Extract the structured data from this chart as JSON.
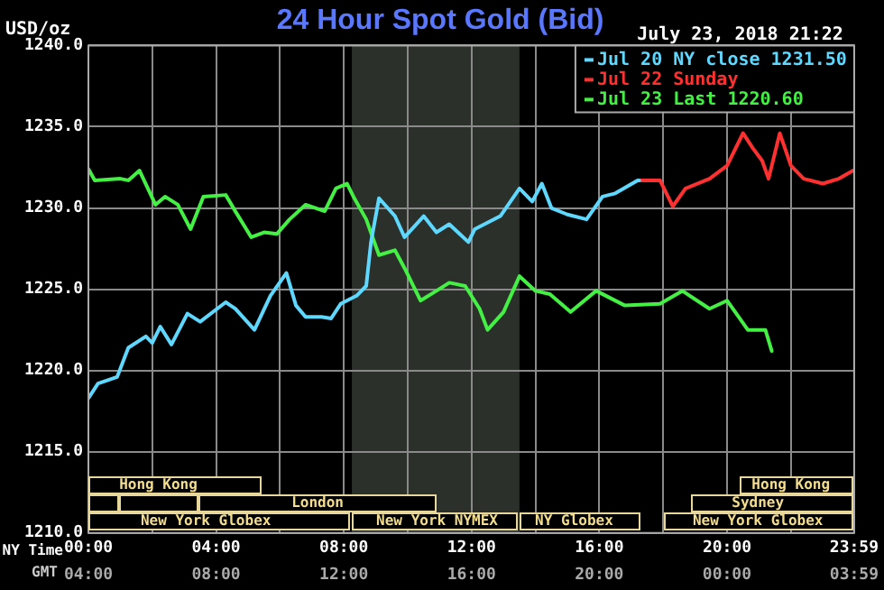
{
  "chart_data": {
    "type": "line",
    "title": "24 Hour Spot Gold (Bid)",
    "subtitle": "July 23, 2018 21:22",
    "ylabel": "USD/oz",
    "xlim": [
      0,
      23.98
    ],
    "xticks": [
      {
        "value": 0,
        "label": "00:00"
      },
      {
        "value": 2,
        "label": null
      },
      {
        "value": 4,
        "label": "04:00"
      },
      {
        "value": 6,
        "label": null
      },
      {
        "value": 8,
        "label": "08:00"
      },
      {
        "value": 10,
        "label": null
      },
      {
        "value": 12,
        "label": "12:00"
      },
      {
        "value": 14,
        "label": null
      },
      {
        "value": 16,
        "label": "16:00"
      },
      {
        "value": 18,
        "label": null
      },
      {
        "value": 20,
        "label": "20:00"
      },
      {
        "value": 22,
        "label": null
      },
      {
        "value": 23.98,
        "label": "23:59"
      }
    ],
    "x2lim": [
      "2018-07-23T04:00",
      "2018-07-24T03:59"
    ],
    "x2ticks": [
      {
        "value": "2018-07-23T04:00",
        "label": "04:00"
      },
      {
        "value": "2018-07-23T08:00",
        "label": "08:00"
      },
      {
        "value": "2018-07-23T12:00",
        "label": "12:00"
      },
      {
        "value": "2018-07-23T16:00",
        "label": "16:00"
      },
      {
        "value": "2018-07-23T20:00",
        "label": "20:00"
      },
      {
        "value": "2018-07-24T00:00",
        "label": "00:00"
      },
      {
        "value": "2018-07-24T03:59",
        "label": "03:59"
      }
    ],
    "ylim": [
      1210,
      1240
    ],
    "yticks": [
      {
        "value": 1210,
        "label": "1210.0"
      },
      {
        "value": 1215,
        "label": "1215.0"
      },
      {
        "value": 1220,
        "label": "1220.0"
      },
      {
        "value": 1225,
        "label": "1225.0"
      },
      {
        "value": 1230,
        "label": "1230.0"
      },
      {
        "value": 1235,
        "label": "1235.0"
      },
      {
        "value": 1240,
        "label": "1240.0"
      }
    ],
    "grid": true,
    "legend": "top right",
    "marker": "none",
    "line_style": "solid",
    "bands": [
      {
        "axis": "x",
        "from": 8.25,
        "to": 13.5,
        "color": "#2b302a"
      }
    ],
    "annotations": [
      "NY Time",
      "GMT",
      "Hong Kong",
      "London",
      "New York Globex",
      "New York NYMEX",
      "NY Globex",
      "Hong Kong",
      "Sydney",
      "New York Globex"
    ],
    "series": [
      {
        "name": "Jul 20 NY close 1231.50",
        "color": "#5fd8ff",
        "x": [
          0,
          0.3,
          0.9,
          1.25,
          1.8,
          2.0,
          2.25,
          2.6,
          3.1,
          3.5,
          4.3,
          4.6,
          5.2,
          5.7,
          6.2,
          6.5,
          6.8,
          7.3,
          7.6,
          7.9,
          8.4,
          8.7,
          8.85,
          9.1,
          9.6,
          9.9,
          10.5,
          10.9,
          11.3,
          11.9,
          12.1,
          12.9,
          13.5,
          13.9,
          14.2,
          14.5,
          15.0,
          15.6,
          16.1,
          16.5,
          17.2,
          17.25
        ],
        "values": [
          1218.3,
          1219.2,
          1219.6,
          1221.4,
          1222.1,
          1221.7,
          1222.7,
          1221.6,
          1223.5,
          1223.0,
          1224.2,
          1223.8,
          1222.5,
          1224.6,
          1226.0,
          1224.0,
          1223.3,
          1223.3,
          1223.2,
          1224.1,
          1224.6,
          1225.2,
          1227.9,
          1230.6,
          1229.5,
          1228.2,
          1229.5,
          1228.5,
          1229.0,
          1227.9,
          1228.7,
          1229.5,
          1231.2,
          1230.4,
          1231.5,
          1230.0,
          1229.6,
          1229.3,
          1230.7,
          1230.9,
          1231.7,
          1231.7
        ]
      },
      {
        "name": "Jul 22 Sunday",
        "color": "#ff3030",
        "x": [
          17.25,
          17.9,
          18.3,
          18.7,
          19.45,
          20.0,
          20.5,
          20.8,
          21.1,
          21.3,
          21.65,
          22.0,
          22.4,
          23.0,
          23.5,
          23.95
        ],
        "values": [
          1231.7,
          1231.7,
          1230.1,
          1231.2,
          1231.8,
          1232.6,
          1234.6,
          1233.7,
          1232.9,
          1231.8,
          1234.6,
          1232.6,
          1231.8,
          1231.5,
          1231.8,
          1232.3
        ]
      },
      {
        "name": "Jul 23 Last 1220.60",
        "color": "#44f044",
        "x": [
          0,
          0.2,
          1.0,
          1.25,
          1.6,
          2.1,
          2.4,
          2.8,
          3.2,
          3.6,
          4.3,
          4.6,
          5.1,
          5.5,
          5.9,
          6.3,
          6.8,
          7.4,
          7.75,
          8.1,
          8.3,
          8.7,
          9.1,
          9.6,
          9.9,
          10.4,
          10.9,
          11.3,
          11.8,
          12.25,
          12.5,
          13.0,
          13.5,
          14.0,
          14.45,
          15.1,
          15.9,
          16.8,
          17.9,
          18.6,
          19.45,
          20.0,
          20.65,
          21.2,
          21.4
        ],
        "values": [
          1232.4,
          1231.7,
          1231.8,
          1231.7,
          1232.3,
          1230.2,
          1230.7,
          1230.2,
          1228.7,
          1230.7,
          1230.8,
          1229.8,
          1228.2,
          1228.5,
          1228.4,
          1229.3,
          1230.2,
          1229.8,
          1231.2,
          1231.5,
          1230.7,
          1229.3,
          1227.1,
          1227.4,
          1226.3,
          1224.3,
          1224.9,
          1225.4,
          1225.2,
          1223.8,
          1222.5,
          1223.6,
          1225.8,
          1224.9,
          1224.7,
          1223.6,
          1224.9,
          1224.0,
          1224.1,
          1224.9,
          1223.8,
          1224.3,
          1222.5,
          1222.5,
          1221.2
        ]
      }
    ]
  }
}
